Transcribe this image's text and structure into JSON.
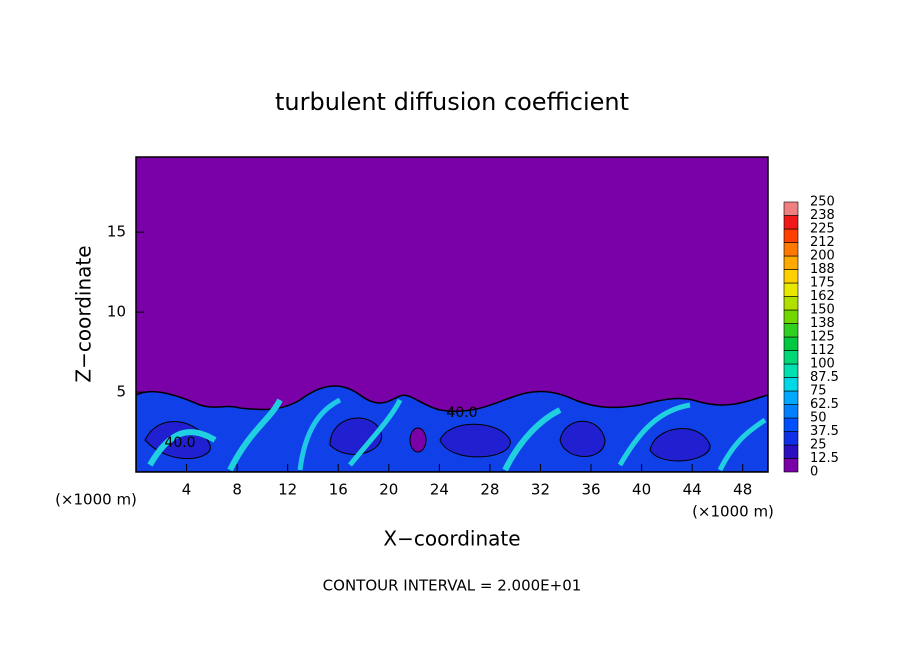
{
  "chart_data": {
    "type": "contour",
    "title": "turbulent diffusion coefficient",
    "xlabel": "X−coordinate",
    "ylabel": "Z−coordinate",
    "x_unit": "(×1000 m)",
    "y_unit": "(×1000 m)",
    "footer": "CONTOUR INTERVAL = 2.000E+01",
    "xlim": [
      0,
      50
    ],
    "xticks": [
      4,
      8,
      12,
      16,
      20,
      24,
      28,
      32,
      36,
      40,
      44,
      48
    ],
    "ylim": [
      0,
      19.7
    ],
    "yticks": [
      5,
      10,
      15
    ],
    "annotations": [
      "40.0",
      "40.0"
    ],
    "colorbar": {
      "levels": [
        0,
        12.5,
        25,
        37.5,
        50,
        62.5,
        75,
        87.5,
        100,
        112,
        125,
        138,
        150,
        162,
        175,
        188,
        200,
        212,
        225,
        238,
        250
      ],
      "colors": [
        "#7a00a8",
        "#2a10c0",
        "#1030e8",
        "#0050ff",
        "#0080ff",
        "#00a8ff",
        "#00d8e8",
        "#00e0b0",
        "#00d878",
        "#00c840",
        "#30d020",
        "#70d800",
        "#b0e000",
        "#e8e800",
        "#ffd000",
        "#ffa800",
        "#ff7800",
        "#ff4000",
        "#f01818",
        "#f08080"
      ]
    }
  }
}
